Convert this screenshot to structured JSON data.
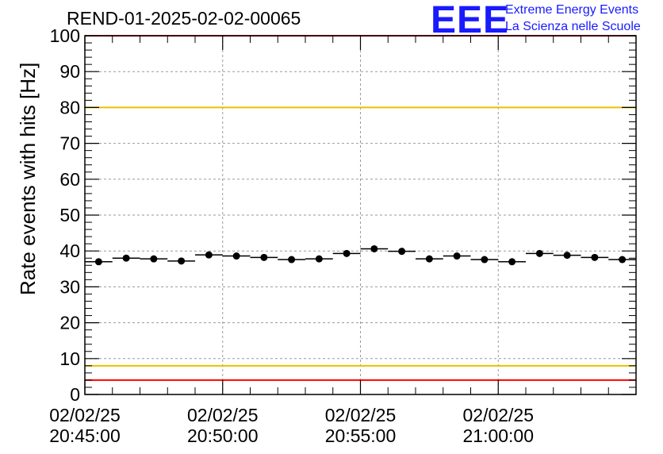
{
  "chart_data": {
    "type": "scatter",
    "title": "REND-01-2025-02-02-00065",
    "ylabel": "Rate events with hits [Hz]",
    "xlabel": "",
    "ylim": [
      0,
      100
    ],
    "yticks": [
      "0",
      "10",
      "20",
      "30",
      "40",
      "50",
      "60",
      "70",
      "80",
      "90",
      "100"
    ],
    "xticks": [
      {
        "date": "02/02/25",
        "time": "20:45:00"
      },
      {
        "date": "02/02/25",
        "time": "20:50:00"
      },
      {
        "date": "02/02/25",
        "time": "20:55:00"
      },
      {
        "date": "02/02/25",
        "time": "21:00:00"
      }
    ],
    "grid": true,
    "x_start": "20:45:00",
    "x_end": "21:05:00",
    "points": [
      {
        "x": "20:45:30",
        "y": 37.0
      },
      {
        "x": "20:46:30",
        "y": 38.0
      },
      {
        "x": "20:47:30",
        "y": 37.8
      },
      {
        "x": "20:48:30",
        "y": 37.2
      },
      {
        "x": "20:49:30",
        "y": 38.9
      },
      {
        "x": "20:50:30",
        "y": 38.6
      },
      {
        "x": "20:51:30",
        "y": 38.2
      },
      {
        "x": "20:52:30",
        "y": 37.6
      },
      {
        "x": "20:53:30",
        "y": 37.8
      },
      {
        "x": "20:54:30",
        "y": 39.3
      },
      {
        "x": "20:55:30",
        "y": 40.6
      },
      {
        "x": "20:56:30",
        "y": 39.9
      },
      {
        "x": "20:57:30",
        "y": 37.8
      },
      {
        "x": "20:58:30",
        "y": 38.6
      },
      {
        "x": "20:59:30",
        "y": 37.6
      },
      {
        "x": "21:00:30",
        "y": 37.0
      },
      {
        "x": "21:01:30",
        "y": 39.3
      },
      {
        "x": "21:02:30",
        "y": 38.8
      },
      {
        "x": "21:03:30",
        "y": 38.2
      },
      {
        "x": "21:04:30",
        "y": 37.6
      }
    ],
    "reference_lines": [
      {
        "y": 100,
        "color": "#ff0000"
      },
      {
        "y": 80,
        "color": "#e6c200"
      },
      {
        "y": 8,
        "color": "#e6c200"
      },
      {
        "y": 4,
        "color": "#ff0000"
      }
    ]
  },
  "logo": {
    "text": "EEE",
    "line1": "Extreme Energy Events",
    "line2": "La Scienza nelle Scuole",
    "color": "#1a1aff"
  }
}
